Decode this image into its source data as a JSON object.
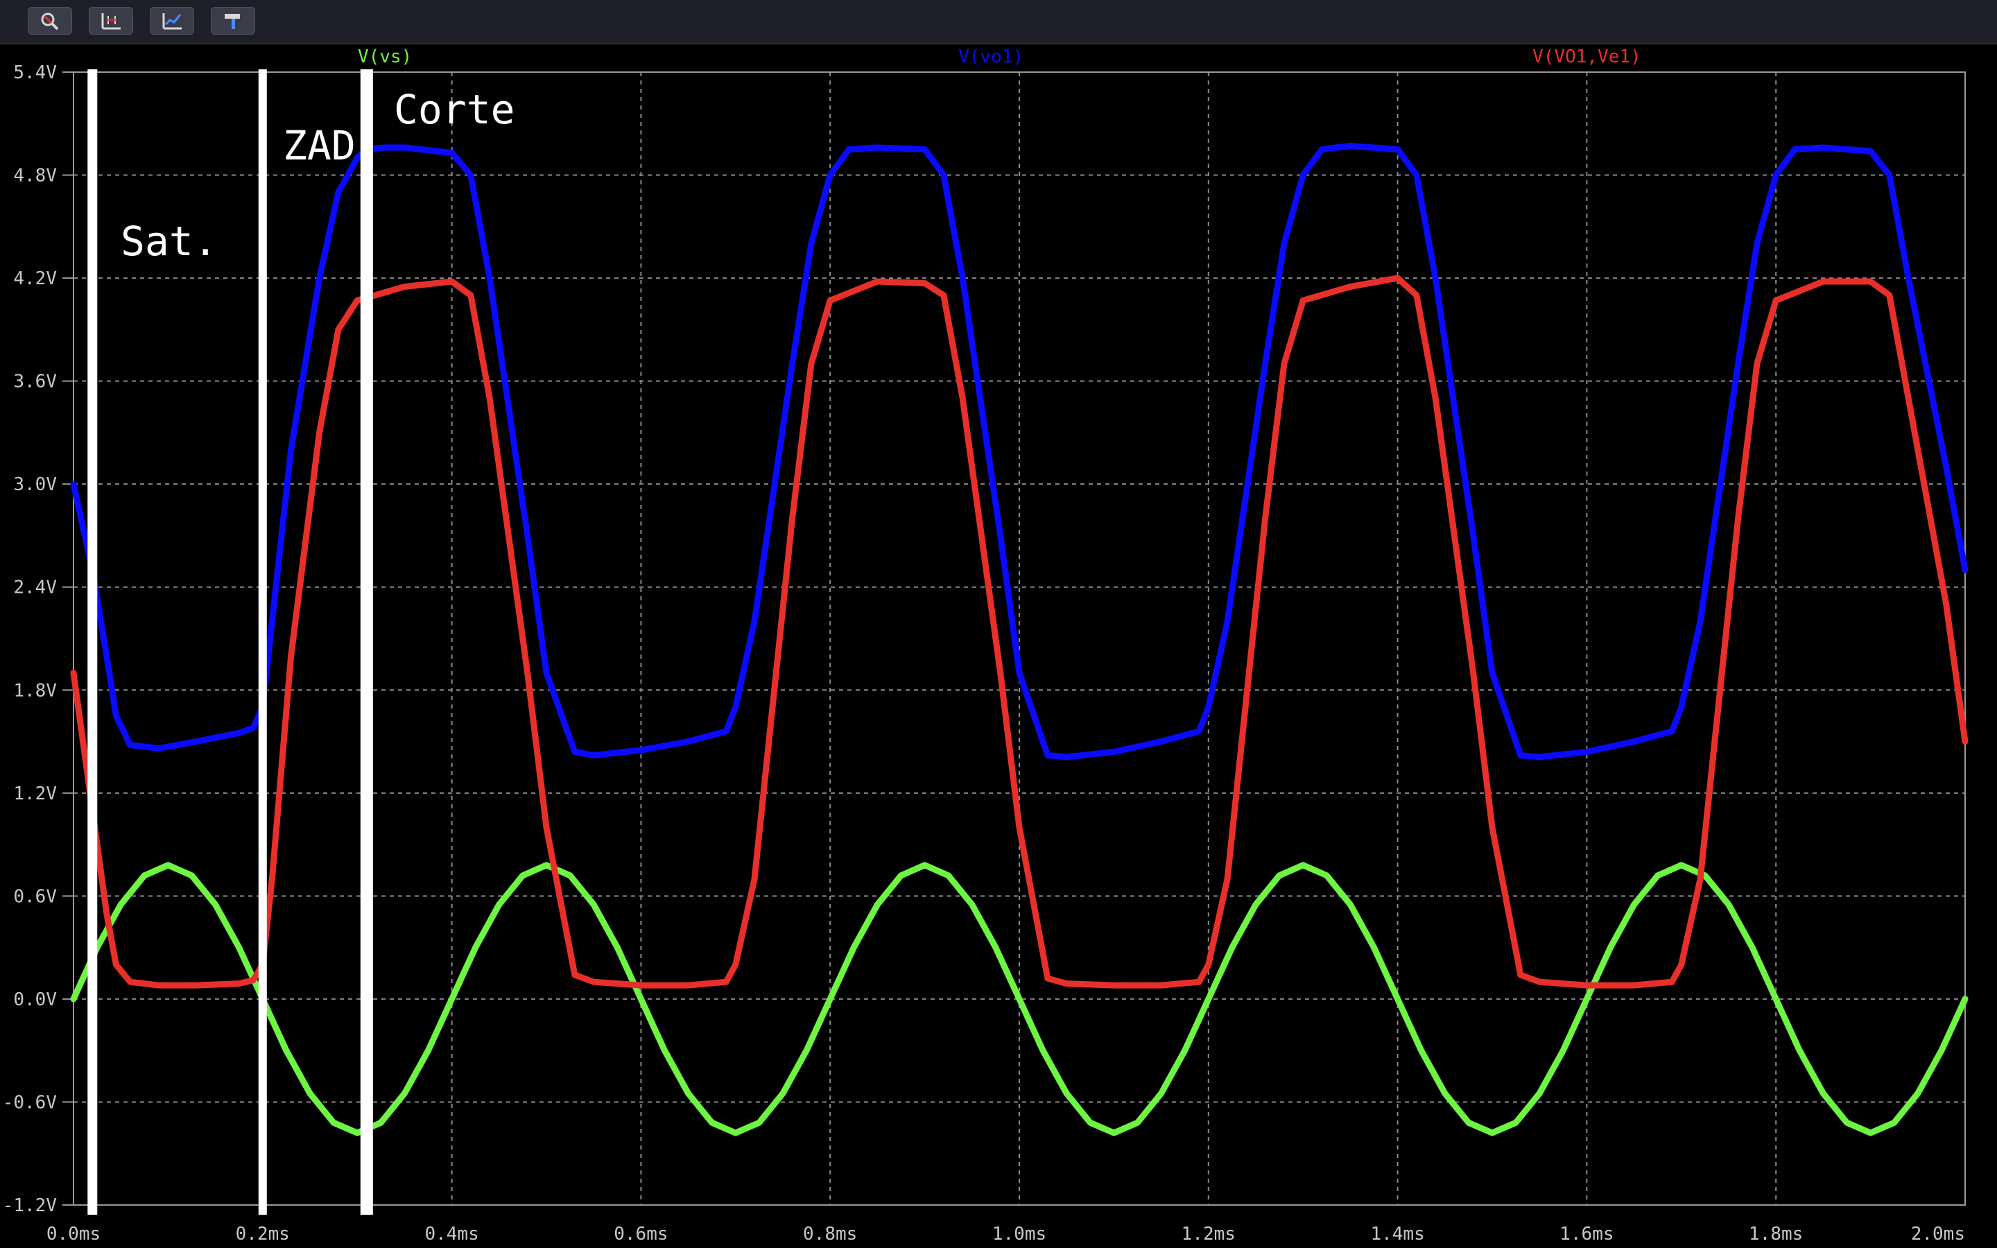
{
  "toolbar": {
    "buttons": [
      {
        "name": "zoom-tool-button",
        "icon": "magnifier-icon"
      },
      {
        "name": "autorange-button",
        "icon": "axis-fit-icon"
      },
      {
        "name": "cursor-button",
        "icon": "cursor-graph-icon"
      },
      {
        "name": "settings-button",
        "icon": "hammer-icon"
      }
    ]
  },
  "annotations": {
    "sat": "Sat.",
    "zad": "ZAD",
    "corte": "Corte"
  },
  "chart_data": {
    "type": "line",
    "xlim": [
      0.0,
      2.0
    ],
    "ylim": [
      -1.2,
      5.4
    ],
    "x_ticks": [
      "0.0ms",
      "0.2ms",
      "0.4ms",
      "0.6ms",
      "0.8ms",
      "1.0ms",
      "1.2ms",
      "1.4ms",
      "1.6ms",
      "1.8ms",
      "2.0ms"
    ],
    "y_ticks": [
      "5.4V",
      "4.8V",
      "4.2V",
      "3.6V",
      "3.0V",
      "2.4V",
      "1.8V",
      "1.2V",
      "0.6V",
      "0.0V",
      "-0.6V",
      "-1.2V"
    ],
    "grid": true,
    "legend_placement": "top",
    "series": [
      {
        "name": "V(vs)",
        "color": "#6ef542",
        "x": [
          0.0,
          0.025,
          0.05,
          0.075,
          0.1,
          0.125,
          0.15,
          0.175,
          0.2,
          0.225,
          0.25,
          0.275,
          0.3,
          0.325,
          0.35,
          0.375,
          0.4,
          0.425,
          0.45,
          0.475,
          0.5,
          0.525,
          0.55,
          0.575,
          0.6,
          0.625,
          0.65,
          0.675,
          0.7,
          0.725,
          0.75,
          0.775,
          0.8,
          0.825,
          0.85,
          0.875,
          0.9,
          0.925,
          0.95,
          0.975,
          1.0,
          1.025,
          1.05,
          1.075,
          1.1,
          1.125,
          1.15,
          1.175,
          1.2,
          1.225,
          1.25,
          1.275,
          1.3,
          1.325,
          1.35,
          1.375,
          1.4,
          1.425,
          1.45,
          1.475,
          1.5,
          1.525,
          1.55,
          1.575,
          1.6,
          1.625,
          1.65,
          1.675,
          1.7,
          1.725,
          1.75,
          1.775,
          1.8,
          1.825,
          1.85,
          1.875,
          1.9,
          1.925,
          1.95,
          1.975,
          2.0
        ],
        "y": [
          0.0,
          0.3,
          0.55,
          0.72,
          0.78,
          0.72,
          0.55,
          0.3,
          0.0,
          -0.3,
          -0.55,
          -0.72,
          -0.78,
          -0.72,
          -0.55,
          -0.3,
          0.0,
          0.3,
          0.55,
          0.72,
          0.78,
          0.72,
          0.55,
          0.3,
          0.0,
          -0.3,
          -0.55,
          -0.72,
          -0.78,
          -0.72,
          -0.55,
          -0.3,
          0.0,
          0.3,
          0.55,
          0.72,
          0.78,
          0.72,
          0.55,
          0.3,
          0.0,
          -0.3,
          -0.55,
          -0.72,
          -0.78,
          -0.72,
          -0.55,
          -0.3,
          0.0,
          0.3,
          0.55,
          0.72,
          0.78,
          0.72,
          0.55,
          0.3,
          0.0,
          -0.3,
          -0.55,
          -0.72,
          -0.78,
          -0.72,
          -0.55,
          -0.3,
          0.0,
          0.3,
          0.55,
          0.72,
          0.78,
          0.72,
          0.55,
          0.3,
          0.0,
          -0.3,
          -0.55,
          -0.72,
          -0.78,
          -0.72,
          -0.55,
          -0.3,
          0.0
        ]
      },
      {
        "name": "V(vo1)",
        "color": "#0a0aff",
        "x": [
          0.0,
          0.02,
          0.035,
          0.045,
          0.06,
          0.09,
          0.13,
          0.175,
          0.19,
          0.2,
          0.21,
          0.23,
          0.26,
          0.28,
          0.3,
          0.31,
          0.33,
          0.35,
          0.4,
          0.42,
          0.44,
          0.48,
          0.5,
          0.53,
          0.55,
          0.6,
          0.65,
          0.69,
          0.7,
          0.72,
          0.76,
          0.78,
          0.8,
          0.82,
          0.85,
          0.9,
          0.92,
          0.94,
          0.98,
          1.0,
          1.03,
          1.05,
          1.1,
          1.15,
          1.19,
          1.2,
          1.22,
          1.26,
          1.28,
          1.3,
          1.32,
          1.35,
          1.4,
          1.42,
          1.44,
          1.48,
          1.5,
          1.53,
          1.55,
          1.6,
          1.65,
          1.69,
          1.7,
          1.72,
          1.76,
          1.78,
          1.8,
          1.82,
          1.85,
          1.9,
          1.92,
          1.94,
          1.98,
          2.0
        ],
        "y": [
          3.0,
          2.5,
          2.0,
          1.65,
          1.48,
          1.46,
          1.5,
          1.55,
          1.58,
          1.7,
          2.2,
          3.2,
          4.2,
          4.7,
          4.9,
          4.95,
          4.96,
          4.96,
          4.93,
          4.8,
          4.2,
          2.7,
          1.9,
          1.44,
          1.42,
          1.45,
          1.5,
          1.56,
          1.7,
          2.2,
          3.7,
          4.4,
          4.8,
          4.95,
          4.96,
          4.95,
          4.8,
          4.2,
          2.7,
          1.9,
          1.42,
          1.41,
          1.44,
          1.5,
          1.56,
          1.7,
          2.2,
          3.7,
          4.4,
          4.8,
          4.95,
          4.97,
          4.95,
          4.8,
          4.2,
          2.7,
          1.9,
          1.42,
          1.41,
          1.44,
          1.5,
          1.56,
          1.7,
          2.2,
          3.7,
          4.4,
          4.8,
          4.95,
          4.96,
          4.94,
          4.8,
          4.2,
          3.1,
          2.5
        ]
      },
      {
        "name": "V(VO1,Ve1)",
        "color": "#e8302a",
        "x": [
          0.0,
          0.02,
          0.035,
          0.045,
          0.06,
          0.09,
          0.13,
          0.175,
          0.19,
          0.2,
          0.21,
          0.23,
          0.26,
          0.28,
          0.3,
          0.35,
          0.4,
          0.42,
          0.44,
          0.48,
          0.5,
          0.53,
          0.55,
          0.6,
          0.65,
          0.69,
          0.7,
          0.72,
          0.76,
          0.78,
          0.8,
          0.85,
          0.9,
          0.92,
          0.94,
          0.98,
          1.0,
          1.03,
          1.05,
          1.1,
          1.15,
          1.19,
          1.2,
          1.22,
          1.26,
          1.28,
          1.3,
          1.35,
          1.4,
          1.42,
          1.44,
          1.48,
          1.5,
          1.53,
          1.55,
          1.6,
          1.65,
          1.69,
          1.7,
          1.72,
          1.76,
          1.78,
          1.8,
          1.85,
          1.9,
          1.92,
          1.94,
          1.98,
          2.0
        ],
        "y": [
          1.9,
          1.1,
          0.5,
          0.2,
          0.1,
          0.08,
          0.08,
          0.09,
          0.11,
          0.2,
          0.7,
          2.0,
          3.3,
          3.9,
          4.07,
          4.15,
          4.18,
          4.1,
          3.5,
          1.9,
          1.0,
          0.14,
          0.1,
          0.08,
          0.08,
          0.1,
          0.2,
          0.7,
          2.8,
          3.7,
          4.07,
          4.18,
          4.17,
          4.1,
          3.5,
          1.9,
          1.0,
          0.12,
          0.09,
          0.08,
          0.08,
          0.1,
          0.2,
          0.7,
          2.8,
          3.7,
          4.07,
          4.15,
          4.2,
          4.1,
          3.5,
          1.9,
          1.0,
          0.14,
          0.1,
          0.08,
          0.08,
          0.1,
          0.2,
          0.7,
          2.8,
          3.7,
          4.07,
          4.18,
          4.18,
          4.1,
          3.5,
          2.3,
          1.5
        ]
      }
    ],
    "markers": [
      0.02,
      0.2,
      0.31
    ]
  }
}
